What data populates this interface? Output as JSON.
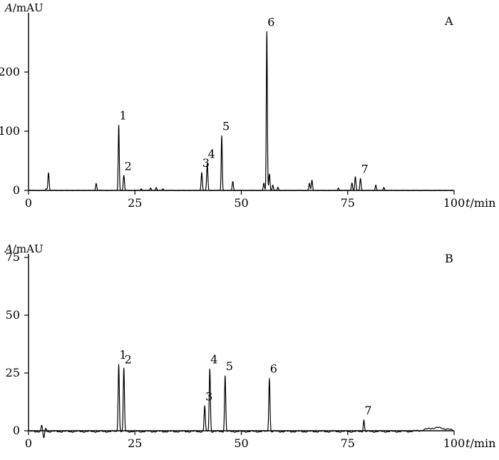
{
  "chart_data": [
    {
      "type": "line",
      "panel_label": "A",
      "ylabel": {
        "var": "A",
        "unit": "/mAU"
      },
      "xlabel": {
        "var": "t",
        "unit": "/min"
      },
      "xlim": [
        0,
        100
      ],
      "ylim": [
        -5,
        300
      ],
      "x_ticks": [
        0,
        25,
        50,
        75,
        100
      ],
      "y_ticks": [
        0,
        100,
        200
      ],
      "baseline": 0,
      "peaks": [
        {
          "x": 4.2,
          "height": 3
        },
        {
          "x": 4.7,
          "height": 30
        },
        {
          "x": 15.9,
          "height": 12
        },
        {
          "x": 21.2,
          "height": 110,
          "label": "1"
        },
        {
          "x": 22.4,
          "height": 25,
          "label": "2"
        },
        {
          "x": 26.5,
          "height": 3
        },
        {
          "x": 28.7,
          "height": 4
        },
        {
          "x": 30.0,
          "height": 5
        },
        {
          "x": 31.6,
          "height": 3
        },
        {
          "x": 40.7,
          "height": 30,
          "label": "3"
        },
        {
          "x": 42.0,
          "height": 45,
          "label": "4"
        },
        {
          "x": 45.4,
          "height": 92,
          "label": "5"
        },
        {
          "x": 48.0,
          "height": 15
        },
        {
          "x": 55.3,
          "height": 12
        },
        {
          "x": 56.0,
          "height": 268,
          "label": "6"
        },
        {
          "x": 56.6,
          "height": 28
        },
        {
          "x": 57.4,
          "height": 9
        },
        {
          "x": 58.6,
          "height": 5
        },
        {
          "x": 66.0,
          "height": 12
        },
        {
          "x": 66.6,
          "height": 17
        },
        {
          "x": 72.8,
          "height": 4
        },
        {
          "x": 76.0,
          "height": 13
        },
        {
          "x": 76.8,
          "height": 23
        },
        {
          "x": 78.0,
          "height": 20,
          "label": "7"
        },
        {
          "x": 81.6,
          "height": 9
        },
        {
          "x": 83.5,
          "height": 5
        }
      ]
    },
    {
      "type": "line",
      "panel_label": "B",
      "ylabel": {
        "var": "A",
        "unit": "/mAU"
      },
      "xlabel": {
        "var": "t",
        "unit": "/min"
      },
      "xlim": [
        0,
        100
      ],
      "ylim": [
        -3,
        80
      ],
      "x_ticks": [
        0,
        25,
        50,
        75,
        100
      ],
      "y_ticks": [
        0,
        25,
        50,
        75
      ],
      "baseline": -0.3,
      "peaks": [
        {
          "x": 3.1,
          "height": 2.5
        },
        {
          "x": 3.6,
          "height": -3
        },
        {
          "x": 4.1,
          "height": 1.5
        },
        {
          "x": 21.2,
          "height": 29,
          "label": "1"
        },
        {
          "x": 22.4,
          "height": 27,
          "label": "2"
        },
        {
          "x": 41.4,
          "height": 11,
          "label": "3"
        },
        {
          "x": 42.6,
          "height": 27,
          "label": "4"
        },
        {
          "x": 46.2,
          "height": 24,
          "label": "5"
        },
        {
          "x": 56.6,
          "height": 23,
          "label": "6"
        },
        {
          "x": 78.8,
          "height": 5,
          "label": "7"
        },
        {
          "x": 96.0,
          "height": 1.6,
          "width": 2.5
        }
      ]
    }
  ]
}
